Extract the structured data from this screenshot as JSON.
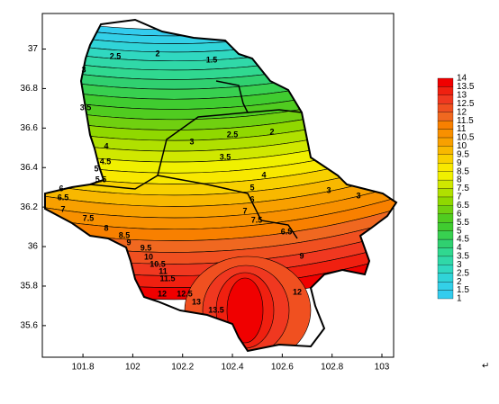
{
  "chart_data": {
    "type": "contour",
    "xlim": [
      101.637,
      103.047
    ],
    "xticks": [
      101.8,
      102,
      102.2,
      102.4,
      102.6,
      102.8,
      103
    ],
    "ylim": [
      35.44,
      37.18
    ],
    "yticks": [
      35.6,
      35.8,
      36,
      36.2,
      36.4,
      36.6,
      36.8,
      37
    ],
    "colorbar_ticks": [
      1,
      1.5,
      2,
      2.5,
      3,
      3.5,
      4,
      4.5,
      5,
      5.5,
      6,
      6.5,
      7,
      7.5,
      8,
      8.5,
      9,
      9.5,
      10,
      10.5,
      11,
      11.5,
      12,
      12.5,
      13,
      13.5,
      14
    ],
    "colormap": [
      "#33ccee",
      "#33d0e8",
      "#30d4d8",
      "#30d8c0",
      "#30d8a8",
      "#30d890",
      "#30d070",
      "#38d050",
      "#40cc30",
      "#50cc20",
      "#70d010",
      "#90d800",
      "#b0e000",
      "#d0e800",
      "#f0f000",
      "#f8e800",
      "#f8d000",
      "#f8b800",
      "#f8a000",
      "#f89000",
      "#f88000",
      "#f06820",
      "#f05020",
      "#f03820",
      "#f02010",
      "#f00000"
    ],
    "contour_labels": [
      2.5,
      2,
      1.5,
      3,
      3.5,
      2.5,
      2,
      3,
      3.5,
      4,
      4.5,
      5,
      5.5,
      6,
      6.5,
      7,
      7.5,
      8,
      8.5,
      9,
      9.5,
      10,
      10.5,
      11,
      11.5,
      12,
      12.5,
      13,
      13.5,
      4,
      5,
      6,
      7,
      7.5,
      3,
      3,
      6.5,
      9,
      12
    ],
    "mark": "↵"
  }
}
